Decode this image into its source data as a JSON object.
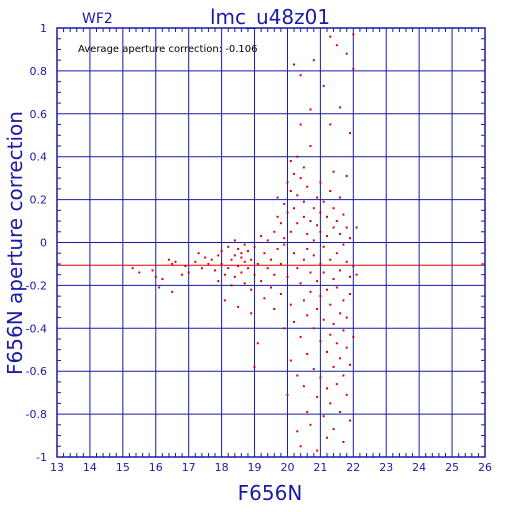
{
  "chart_data": {
    "type": "scatter",
    "title": "lmc_u48z01",
    "chip_label": "WF2",
    "annotation": "Average aperture correction: -0.106",
    "xlabel": "F656N",
    "ylabel": "F656N aperture correction",
    "xlim": [
      13,
      26
    ],
    "ylim": [
      -1,
      1
    ],
    "xticks": [
      "13",
      "14",
      "15",
      "16",
      "17",
      "18",
      "19",
      "20",
      "21",
      "22",
      "23",
      "24",
      "25",
      "26"
    ],
    "yticks": [
      "-1",
      "-0.8",
      "-0.6",
      "-0.4",
      "-0.2",
      "0",
      "0.2",
      "0.4",
      "0.6",
      "0.8",
      "1"
    ],
    "grid": true,
    "reference_line_y": -0.106,
    "colors": {
      "axes": "#1a1aa6",
      "points": "#dd0000",
      "reference_line": "#dd0000"
    },
    "points": [
      [
        15.3,
        -0.12
      ],
      [
        15.5,
        -0.14
      ],
      [
        15.9,
        -0.13
      ],
      [
        16.0,
        -0.16
      ],
      [
        16.1,
        -0.21
      ],
      [
        16.2,
        -0.17
      ],
      [
        16.4,
        -0.08
      ],
      [
        16.5,
        -0.1
      ],
      [
        16.5,
        -0.23
      ],
      [
        16.6,
        -0.09
      ],
      [
        16.8,
        -0.15
      ],
      [
        16.9,
        -0.11
      ],
      [
        17.0,
        -0.14
      ],
      [
        17.2,
        -0.09
      ],
      [
        17.3,
        -0.05
      ],
      [
        17.4,
        -0.12
      ],
      [
        17.5,
        -0.07
      ],
      [
        17.6,
        -0.1
      ],
      [
        17.7,
        -0.08
      ],
      [
        17.8,
        -0.13
      ],
      [
        17.9,
        -0.06
      ],
      [
        17.9,
        -0.18
      ],
      [
        18.0,
        -0.04
      ],
      [
        18.0,
        -0.1
      ],
      [
        18.1,
        -0.15
      ],
      [
        18.1,
        -0.27
      ],
      [
        18.2,
        -0.02
      ],
      [
        18.2,
        -0.12
      ],
      [
        18.3,
        -0.08
      ],
      [
        18.3,
        -0.2
      ],
      [
        18.4,
        0.01
      ],
      [
        18.4,
        -0.06
      ],
      [
        18.4,
        -0.16
      ],
      [
        18.5,
        -0.03
      ],
      [
        18.5,
        -0.11
      ],
      [
        18.5,
        -0.3
      ],
      [
        18.6,
        -0.07
      ],
      [
        18.6,
        -0.14
      ],
      [
        18.6,
        -0.05
      ],
      [
        18.7,
        -0.01
      ],
      [
        18.7,
        -0.09
      ],
      [
        18.7,
        -0.19
      ],
      [
        18.8,
        -0.12
      ],
      [
        18.8,
        -0.04
      ],
      [
        18.9,
        -0.22
      ],
      [
        18.9,
        -0.08
      ],
      [
        18.9,
        -0.33
      ],
      [
        19.0,
        -0.02
      ],
      [
        19.0,
        -0.15
      ],
      [
        19.0,
        -0.58
      ],
      [
        19.1,
        -0.1
      ],
      [
        19.1,
        -0.47
      ],
      [
        19.2,
        0.03
      ],
      [
        19.2,
        -0.18
      ],
      [
        19.3,
        -0.05
      ],
      [
        19.3,
        -0.26
      ],
      [
        19.4,
        0.01
      ],
      [
        19.4,
        -0.12
      ],
      [
        19.5,
        -0.08
      ],
      [
        19.5,
        -0.21
      ],
      [
        19.6,
        0.05
      ],
      [
        19.6,
        -0.15
      ],
      [
        19.6,
        -0.31
      ],
      [
        19.7,
        -0.03
      ],
      [
        19.7,
        0.12
      ],
      [
        19.7,
        0.21
      ],
      [
        19.8,
        -0.1
      ],
      [
        19.8,
        -0.24
      ],
      [
        19.8,
        0.09
      ],
      [
        19.9,
        -0.01
      ],
      [
        19.9,
        0.02
      ],
      [
        19.9,
        -0.4
      ],
      [
        19.9,
        0.18
      ],
      [
        20.0,
        0.14
      ],
      [
        20.0,
        0.28
      ],
      [
        20.0,
        -0.16
      ],
      [
        20.0,
        -0.71
      ],
      [
        20.1,
        0.38
      ],
      [
        20.1,
        0.05
      ],
      [
        20.1,
        -0.29
      ],
      [
        20.1,
        0.24
      ],
      [
        20.1,
        -0.55
      ],
      [
        20.2,
        0.32
      ],
      [
        20.2,
        -0.05
      ],
      [
        20.2,
        -0.37
      ],
      [
        20.2,
        0.16
      ],
      [
        20.2,
        0.83
      ],
      [
        20.3,
        0.4
      ],
      [
        20.3,
        0.09
      ],
      [
        20.3,
        -0.12
      ],
      [
        20.3,
        -0.62
      ],
      [
        20.3,
        0.22
      ],
      [
        20.3,
        -0.88
      ],
      [
        20.4,
        0.3
      ],
      [
        20.4,
        -0.19
      ],
      [
        20.4,
        -0.44
      ],
      [
        20.4,
        0.78
      ],
      [
        20.4,
        0.55
      ],
      [
        20.4,
        -0.95
      ],
      [
        20.5,
        0.12
      ],
      [
        20.5,
        -0.08
      ],
      [
        20.5,
        -0.27
      ],
      [
        20.5,
        0.19
      ],
      [
        20.5,
        -0.67
      ],
      [
        20.5,
        0.35
      ],
      [
        20.6,
        -0.03
      ],
      [
        20.6,
        -0.34
      ],
      [
        20.6,
        0.04
      ],
      [
        20.6,
        -0.79
      ],
      [
        20.6,
        0.26
      ],
      [
        20.6,
        -0.52
      ],
      [
        20.7,
        0.1
      ],
      [
        20.7,
        -0.14
      ],
      [
        20.7,
        -0.23
      ],
      [
        20.7,
        0.45
      ],
      [
        20.7,
        -0.85
      ],
      [
        20.7,
        0.62
      ],
      [
        20.8,
        -0.06
      ],
      [
        20.8,
        -0.4
      ],
      [
        20.8,
        0.16
      ],
      [
        20.8,
        -0.59
      ],
      [
        20.8,
        0.01
      ],
      [
        20.8,
        0.85
      ],
      [
        20.9,
        -0.18
      ],
      [
        20.9,
        0.21
      ],
      [
        20.9,
        -0.31
      ],
      [
        20.9,
        -0.72
      ],
      [
        20.9,
        0.08
      ],
      [
        20.9,
        -0.97
      ],
      [
        21.0,
        -0.1
      ],
      [
        21.0,
        0.28
      ],
      [
        21.0,
        -0.46
      ],
      [
        21.0,
        0.05
      ],
      [
        21.0,
        -0.25
      ],
      [
        21.0,
        -0.63
      ],
      [
        21.0,
        0.14
      ],
      [
        21.1,
        -0.02
      ],
      [
        21.1,
        -0.36
      ],
      [
        21.1,
        0.19
      ],
      [
        21.1,
        -0.81
      ],
      [
        21.1,
        -0.14
      ],
      [
        21.1,
        0.73
      ],
      [
        21.2,
        0.03
      ],
      [
        21.2,
        -0.22
      ],
      [
        21.2,
        -0.51
      ],
      [
        21.2,
        0.12
      ],
      [
        21.2,
        -0.68
      ],
      [
        21.2,
        -0.91
      ],
      [
        21.3,
        -0.08
      ],
      [
        21.3,
        0.24
      ],
      [
        21.3,
        -0.29
      ],
      [
        21.3,
        -0.43
      ],
      [
        21.3,
        0.55
      ],
      [
        21.3,
        -0.75
      ],
      [
        21.3,
        0.96
      ],
      [
        21.4,
        0.07
      ],
      [
        21.4,
        -0.17
      ],
      [
        21.4,
        -0.38
      ],
      [
        21.4,
        0.16
      ],
      [
        21.4,
        -0.58
      ],
      [
        21.4,
        -0.87
      ],
      [
        21.4,
        0.33
      ],
      [
        21.5,
        -0.05
      ],
      [
        21.5,
        -0.21
      ],
      [
        21.5,
        0.1
      ],
      [
        21.5,
        -0.47
      ],
      [
        21.5,
        -0.66
      ],
      [
        21.5,
        0.92
      ],
      [
        21.6,
        -0.13
      ],
      [
        21.6,
        0.04
      ],
      [
        21.6,
        -0.33
      ],
      [
        21.6,
        -0.54
      ],
      [
        21.6,
        0.21
      ],
      [
        21.6,
        -0.79
      ],
      [
        21.6,
        0.63
      ],
      [
        21.7,
        -0.01
      ],
      [
        21.7,
        -0.27
      ],
      [
        21.7,
        -0.41
      ],
      [
        21.7,
        0.13
      ],
      [
        21.7,
        -0.62
      ],
      [
        21.7,
        -0.93
      ],
      [
        21.8,
        -0.09
      ],
      [
        21.8,
        0.07
      ],
      [
        21.8,
        -0.35
      ],
      [
        21.8,
        -0.49
      ],
      [
        21.8,
        0.31
      ],
      [
        21.8,
        -0.71
      ],
      [
        21.8,
        0.88
      ],
      [
        21.9,
        -0.16
      ],
      [
        21.9,
        0.02
      ],
      [
        21.9,
        -0.24
      ],
      [
        21.9,
        -0.57
      ],
      [
        21.9,
        -0.83
      ],
      [
        21.9,
        0.51
      ],
      [
        22.0,
        0.97
      ],
      [
        22.0,
        0.81
      ],
      [
        22.0,
        -0.11
      ],
      [
        22.0,
        -0.44
      ],
      [
        22.1,
        0.07
      ],
      [
        22.1,
        -0.15
      ]
    ]
  }
}
